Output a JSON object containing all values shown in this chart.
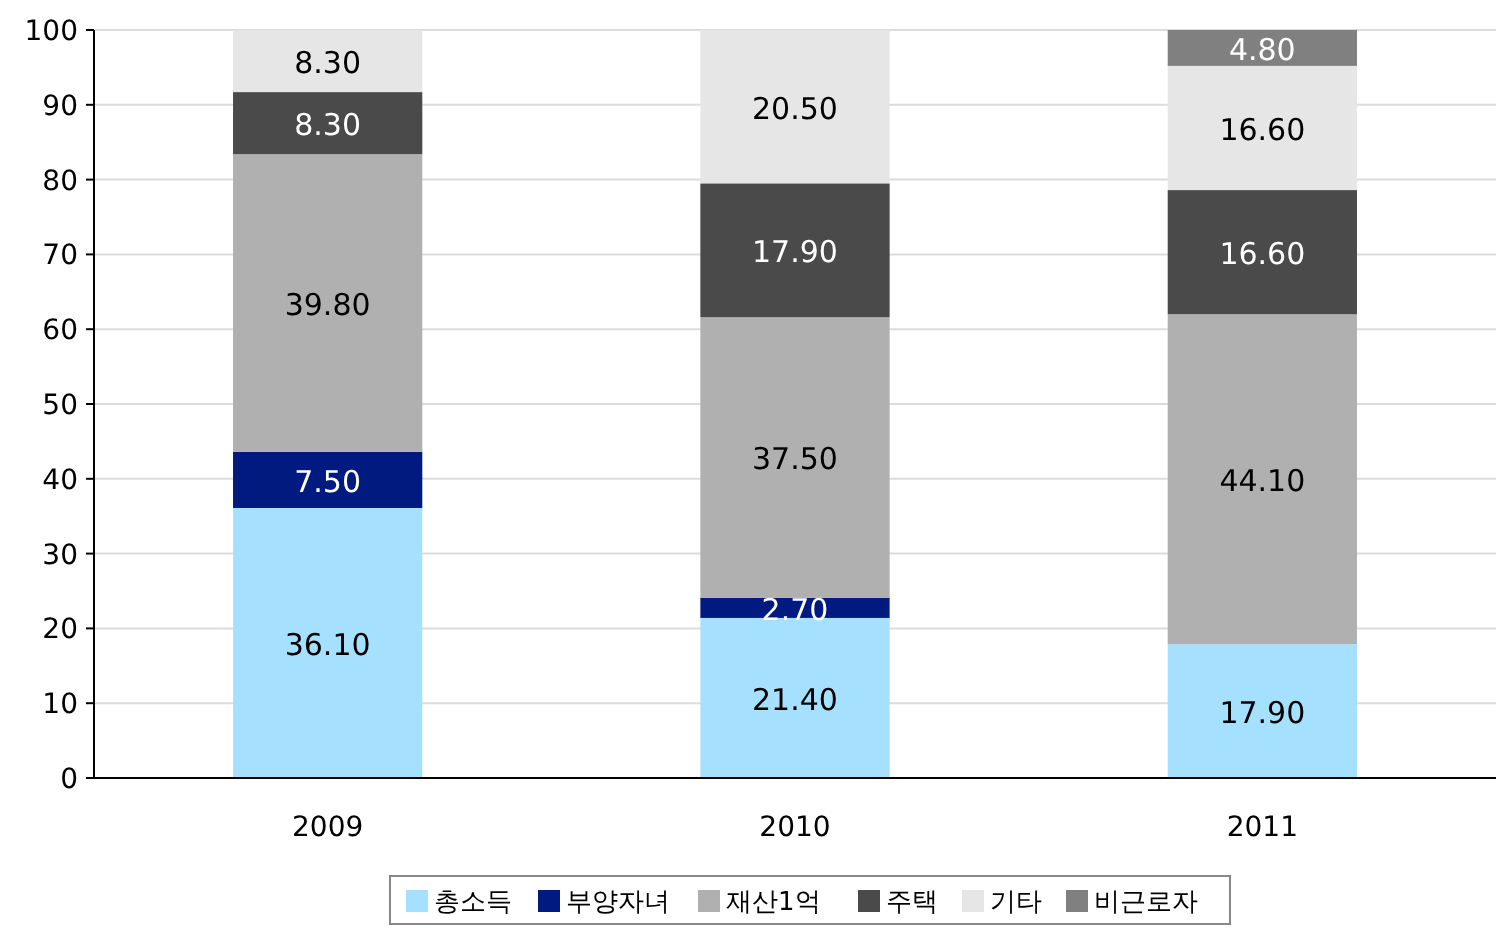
{
  "chart_data": {
    "type": "bar",
    "stacked": true,
    "categories": [
      "2009",
      "2010",
      "2011"
    ],
    "series": [
      {
        "name": "총소득",
        "color": "#a6e0ff",
        "values": [
          36.1,
          21.4,
          17.9
        ],
        "value_labels": [
          "36.10",
          "21.40",
          "17.90"
        ]
      },
      {
        "name": "부양자녀",
        "color": "#001a80",
        "values": [
          7.5,
          2.7,
          null
        ],
        "value_labels": [
          "7.50",
          "2.70",
          null
        ]
      },
      {
        "name": "재산1억",
        "color": "#b0b0b0",
        "values": [
          39.8,
          37.5,
          44.1
        ],
        "value_labels": [
          "39.80",
          "37.50",
          "44.10"
        ]
      },
      {
        "name": "주택",
        "color": "#4a4a4a",
        "values": [
          8.3,
          17.9,
          16.6
        ],
        "value_labels": [
          "8.30",
          "17.90",
          "16.60"
        ]
      },
      {
        "name": "기타",
        "color": "#e6e6e6",
        "values": [
          8.3,
          20.5,
          16.6
        ],
        "value_labels": [
          "8.30",
          "20.50",
          "16.60"
        ]
      },
      {
        "name": "비근로자",
        "color": "#808080",
        "values": [
          null,
          null,
          4.8
        ],
        "value_labels": [
          null,
          null,
          "4.80"
        ]
      }
    ],
    "ylim": [
      0,
      100
    ],
    "yticks": [
      0,
      10,
      20,
      30,
      40,
      50,
      60,
      70,
      80,
      90,
      100
    ],
    "grid": "y",
    "legend": "bottom"
  }
}
